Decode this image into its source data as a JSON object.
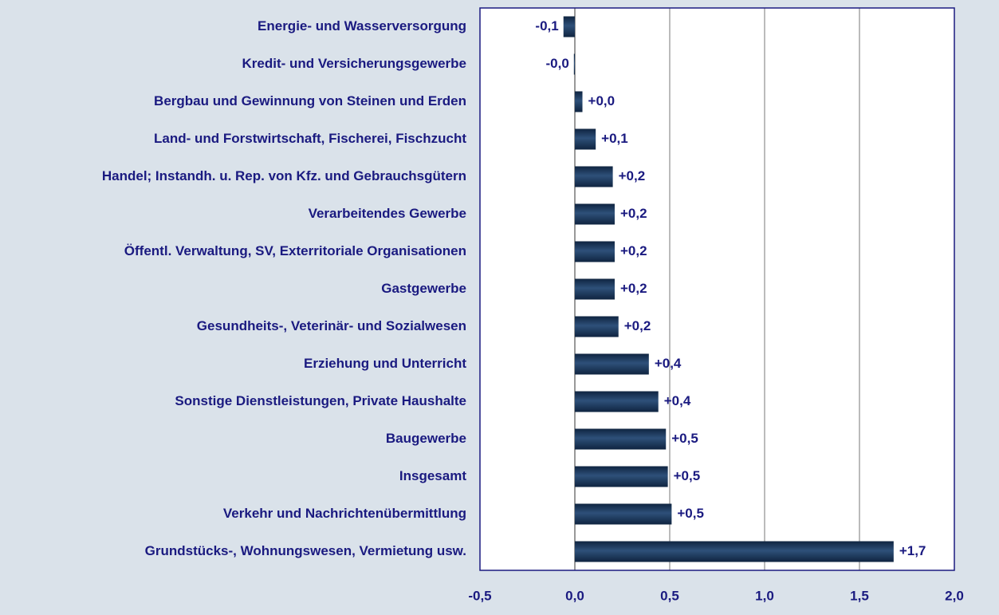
{
  "chart_data": {
    "type": "bar",
    "orientation": "horizontal",
    "categories": [
      "Energie- und Wasserversorgung",
      "Kredit- und Versicherungsgewerbe",
      "Bergbau und Gewinnung von Steinen und Erden",
      "Land- und Forstwirtschaft, Fischerei, Fischzucht",
      "Handel; Instandh. u. Rep. von Kfz. und Gebrauchsgütern",
      "Verarbeitendes Gewerbe",
      "Öffentl. Verwaltung, SV, Exterritoriale Organisationen",
      "Gastgewerbe",
      "Gesundheits-, Veterinär- und Sozialwesen",
      "Erziehung und Unterricht",
      "Sonstige Dienstleistungen, Private Haushalte",
      "Baugewerbe",
      "Insgesamt",
      "Verkehr und Nachrichtenübermittlung",
      "Grundstücks-, Wohnungswesen, Vermietung usw."
    ],
    "values": [
      -0.06,
      -0.005,
      0.04,
      0.11,
      0.2,
      0.21,
      0.21,
      0.21,
      0.23,
      0.39,
      0.44,
      0.48,
      0.49,
      0.51,
      1.68
    ],
    "value_labels": [
      "-0,1",
      "-0,0",
      "+0,0",
      "+0,1",
      "+0,2",
      "+0,2",
      "+0,2",
      "+0,2",
      "+0,2",
      "+0,4",
      "+0,4",
      "+0,5",
      "+0,5",
      "+0,5",
      "+1,7"
    ],
    "color": "#2e5079",
    "xlim": [
      -0.5,
      2.0
    ],
    "xticks": [
      {
        "value": -0.5,
        "label": "-0,5"
      },
      {
        "value": 0,
        "label": "0,0"
      },
      {
        "value": 0.5,
        "label": "0,5"
      },
      {
        "value": 1.0,
        "label": "1,0"
      },
      {
        "value": 1.5,
        "label": "1,5"
      },
      {
        "value": 2.0,
        "label": "2,0"
      }
    ],
    "grid": true
  }
}
